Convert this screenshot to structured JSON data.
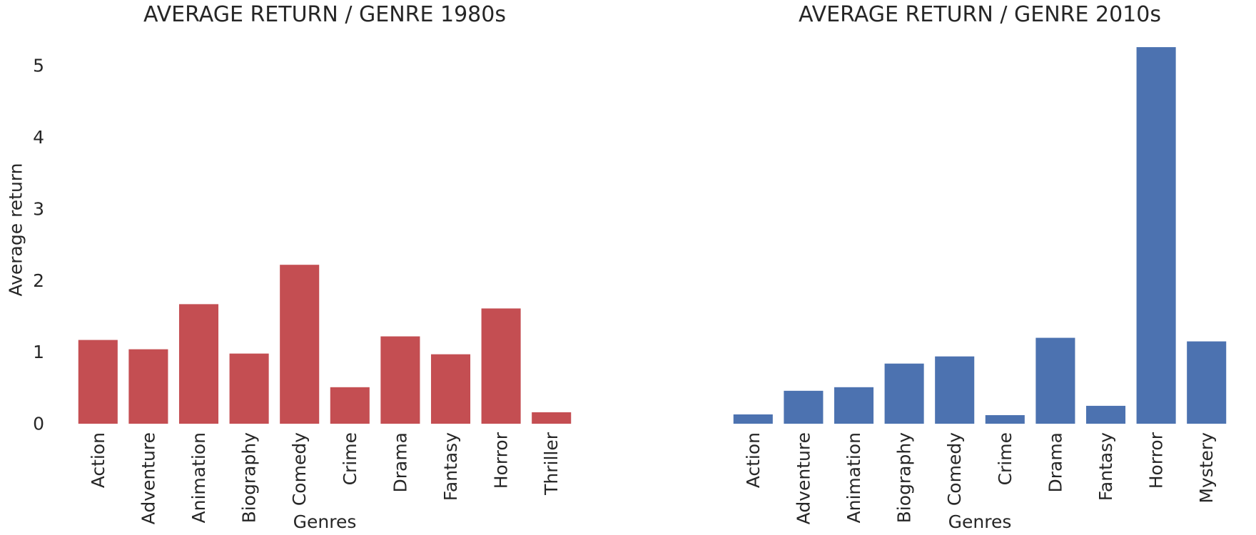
{
  "chart_data": [
    {
      "type": "bar",
      "title": "AVERAGE RETURN / GENRE 1980s",
      "xlabel": "Genres",
      "ylabel": "Average return",
      "categories": [
        "Action",
        "Adventure",
        "Animation",
        "Biography",
        "Comedy",
        "Crime",
        "Drama",
        "Fantasy",
        "Horror",
        "Thriller"
      ],
      "values": [
        1.17,
        1.04,
        1.67,
        0.98,
        2.22,
        0.51,
        1.22,
        0.97,
        1.61,
        0.16
      ],
      "color": "#c44e52",
      "ylim": [
        0,
        5.5
      ],
      "yticks": [
        0,
        1,
        2,
        3,
        4,
        5
      ],
      "grid": false
    },
    {
      "type": "bar",
      "title": "AVERAGE RETURN / GENRE 2010s",
      "xlabel": "Genres",
      "ylabel": "",
      "categories": [
        "Action",
        "Adventure",
        "Animation",
        "Biography",
        "Comedy",
        "Crime",
        "Drama",
        "Fantasy",
        "Horror",
        "Mystery"
      ],
      "values": [
        0.13,
        0.46,
        0.51,
        0.84,
        0.94,
        0.12,
        1.2,
        0.25,
        5.26,
        1.15
      ],
      "color": "#4c72b0",
      "ylim": [
        0,
        5.5
      ],
      "yticks": [],
      "grid": false
    }
  ]
}
